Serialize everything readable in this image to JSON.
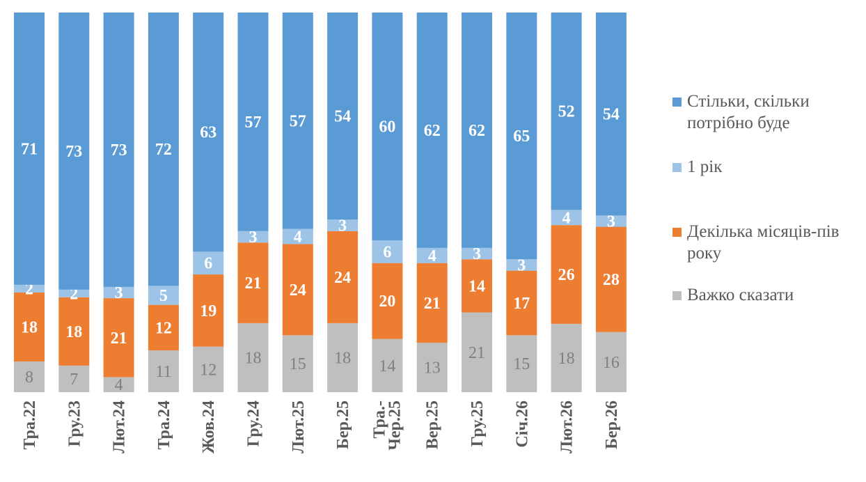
{
  "chart_data": {
    "type": "bar",
    "stacked": true,
    "categories": [
      "Тра.22",
      "Гру.23",
      "Лют.24",
      "Тра.24",
      "Жов.24",
      "Гру.24",
      "Лют.25",
      "Бер.25",
      "Тра.-\nЧер.25",
      "Вер.25",
      "Гру.25",
      "Січ.26",
      "Лют.26",
      "Бер.26"
    ],
    "series": [
      {
        "name": "Важко сказати",
        "color": "#bfbfbf",
        "label_color": "#7f7f7f",
        "values": [
          8,
          7,
          4,
          11,
          12,
          18,
          15,
          18,
          14,
          13,
          21,
          15,
          18,
          16
        ]
      },
      {
        "name": "Декілька місяців-пів року",
        "color": "#ed7d31",
        "label_color": "#ffffff",
        "values": [
          18,
          18,
          21,
          12,
          19,
          21,
          24,
          24,
          20,
          21,
          14,
          17,
          26,
          28
        ]
      },
      {
        "name": "1 рік",
        "color": "#9dc3e6",
        "label_color": "#ffffff",
        "values": [
          2,
          2,
          3,
          5,
          6,
          3,
          4,
          3,
          6,
          4,
          3,
          3,
          4,
          3
        ]
      },
      {
        "name": "Стільки, скільки потрібно буде",
        "color": "#5b9bd5",
        "label_color": "#ffffff",
        "values": [
          71,
          73,
          73,
          72,
          63,
          57,
          57,
          54,
          60,
          62,
          62,
          65,
          52,
          54
        ]
      }
    ],
    "legend_position": "right",
    "ylim": [
      0,
      100
    ]
  }
}
